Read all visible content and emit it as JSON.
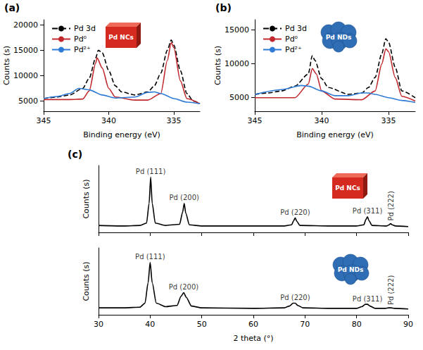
{
  "chart_data": [
    {
      "panel_label": "(a)",
      "type": "line",
      "inset_label": "Pd NCs",
      "xlabel": "Binding energy (eV)",
      "ylabel": "Counts (s)",
      "xlim": [
        345,
        333
      ],
      "xticks": [
        345,
        340,
        335
      ],
      "ylim": [
        3000,
        21000
      ],
      "yticks": [
        5000,
        10000,
        15000,
        20000
      ],
      "grid": false,
      "legend": "upper left",
      "series": [
        {
          "name": "Pd 3d",
          "color": "#000000",
          "line_style": "dashed",
          "x": [
            345,
            344,
            343,
            342,
            341.5,
            341,
            340.8,
            340.5,
            340,
            339.5,
            339,
            338,
            337,
            336.5,
            336,
            335.5,
            335.2,
            335,
            334.5,
            334,
            333.5,
            333
          ],
          "values": [
            5500,
            5800,
            6200,
            7500,
            9500,
            13500,
            15000,
            14500,
            11000,
            8000,
            6800,
            6200,
            6800,
            8000,
            10500,
            15000,
            17000,
            16000,
            11000,
            6500,
            5000,
            4500
          ]
        },
        {
          "name": "Pd⁰",
          "color": "#c0282d",
          "line_style": "solid",
          "x": [
            345,
            343,
            342,
            341.5,
            341,
            340.9,
            340.5,
            340,
            339.5,
            338,
            337,
            336,
            335.5,
            335.2,
            335,
            334.5,
            334,
            333
          ],
          "values": [
            5300,
            5300,
            5400,
            7000,
            12500,
            13500,
            11500,
            7500,
            5800,
            5200,
            5200,
            6500,
            13000,
            16500,
            15500,
            9000,
            5500,
            4500
          ]
        },
        {
          "name": "Pd²⁺",
          "color": "#2e7bd6",
          "line_style": "solid",
          "x": [
            345,
            344,
            343,
            342.3,
            341.5,
            340.5,
            339.5,
            338,
            337,
            336.5,
            336,
            335,
            334,
            333
          ],
          "values": [
            5500,
            5900,
            6500,
            7500,
            7200,
            6200,
            5600,
            5800,
            6700,
            6800,
            6500,
            5500,
            4800,
            4500
          ]
        }
      ]
    },
    {
      "panel_label": "(b)",
      "type": "line",
      "inset_label": "Pd NDs",
      "xlabel": "Binding energy (eV)",
      "ylabel": "Counts (s)",
      "xlim": [
        345,
        333
      ],
      "xticks": [
        345,
        340,
        335
      ],
      "ylim": [
        3000,
        16500
      ],
      "yticks": [
        5000,
        10000,
        15000
      ],
      "grid": false,
      "legend": "upper left",
      "series": [
        {
          "name": "Pd 3d",
          "color": "#000000",
          "line_style": "dashed",
          "x": [
            345,
            344,
            343,
            342,
            341,
            340.7,
            340.5,
            340,
            339.5,
            338,
            337,
            336.5,
            336,
            335.5,
            335.2,
            335,
            334.5,
            334,
            333
          ],
          "values": [
            5500,
            5700,
            6000,
            6700,
            8500,
            11200,
            10500,
            7800,
            6500,
            5500,
            5700,
            6500,
            8000,
            11500,
            13700,
            13200,
            9500,
            6000,
            5000
          ]
        },
        {
          "name": "Pd⁰",
          "color": "#c0282d",
          "line_style": "solid",
          "x": [
            345,
            342,
            341,
            340.7,
            340.4,
            340,
            339,
            337,
            336,
            335.5,
            335.2,
            335,
            334.5,
            334,
            333
          ],
          "values": [
            5000,
            5000,
            7000,
            9300,
            8500,
            6000,
            4800,
            4700,
            6000,
            10000,
            12200,
            11800,
            8000,
            5200,
            4500
          ]
        },
        {
          "name": "Pd²⁺",
          "color": "#2e7bd6",
          "line_style": "solid",
          "x": [
            345,
            343,
            341.5,
            341,
            340,
            339,
            338,
            337,
            336.5,
            336,
            335,
            334,
            333
          ],
          "values": [
            5500,
            6200,
            6800,
            6700,
            6000,
            5300,
            5300,
            5700,
            5700,
            5500,
            5000,
            4600,
            4300
          ]
        }
      ]
    },
    {
      "panel_label": "(c)",
      "type": "line",
      "inset_label": "Pd NCs",
      "ylabel": "Counts (s)",
      "xlim": [
        30,
        90
      ],
      "xticks": [
        30,
        40,
        50,
        60,
        70,
        80,
        90
      ],
      "ylim": [
        0,
        115
      ],
      "grid": false,
      "tick_labels": false,
      "series": [
        {
          "color": "#000000",
          "line_style": "solid",
          "x": [
            30,
            35,
            38,
            39.3,
            39.8,
            40.1,
            40.4,
            41,
            43,
            45.7,
            46.3,
            46.6,
            46.9,
            47.6,
            50,
            60,
            66,
            67.4,
            67.8,
            68.1,
            68.4,
            69,
            75,
            80,
            81.4,
            81.8,
            82.1,
            82.4,
            83,
            85.8,
            86.3,
            86.6,
            86.9,
            87.5,
            90
          ],
          "values": [
            12,
            11,
            12,
            16,
            50,
            95,
            50,
            16,
            12,
            14,
            35,
            50,
            33,
            13,
            11,
            11,
            11,
            13,
            20,
            25,
            19,
            12,
            11,
            11,
            13,
            22,
            27,
            20,
            12,
            11,
            13,
            15,
            13,
            11,
            10
          ]
        }
      ],
      "annotations": [
        {
          "text": "Pd (111)",
          "x": 40.1,
          "y": 95
        },
        {
          "text": "Pd (200)",
          "x": 46.6,
          "y": 50
        },
        {
          "text": "Pd (220)",
          "x": 68.1,
          "y": 25
        },
        {
          "text": "Pd (311)",
          "x": 82.1,
          "y": 27
        },
        {
          "text": "Pd (222)",
          "x": 86.6,
          "y": 15
        }
      ]
    },
    {
      "type": "line",
      "inset_label": "Pd NDs",
      "xlabel": "2 theta (°)",
      "ylabel": "Counts (s)",
      "xlim": [
        30,
        90
      ],
      "xticks": [
        30,
        40,
        50,
        60,
        70,
        80,
        90
      ],
      "ylim": [
        0,
        115
      ],
      "grid": false,
      "tick_labels": "x",
      "series": [
        {
          "color": "#000000",
          "line_style": "solid",
          "x": [
            30,
            35,
            38,
            39,
            39.6,
            40,
            40.4,
            41.2,
            43,
            45.2,
            46,
            46.5,
            47,
            48,
            50,
            60,
            66,
            67,
            67.7,
            68.1,
            68.6,
            69.6,
            75,
            80,
            81,
            81.7,
            82.1,
            82.6,
            83.6,
            85.6,
            86.2,
            86.7,
            87.3,
            90
          ],
          "values": [
            12,
            12,
            13,
            20,
            55,
            90,
            55,
            20,
            14,
            16,
            32,
            38,
            30,
            15,
            12,
            11,
            12,
            15,
            20,
            20,
            16,
            12,
            11,
            11,
            14,
            18,
            18,
            15,
            11,
            11,
            12,
            12,
            11,
            10
          ]
        }
      ],
      "annotations": [
        {
          "text": "Pd (111)",
          "x": 40,
          "y": 90
        },
        {
          "text": "Pd (200)",
          "x": 46.5,
          "y": 38
        },
        {
          "text": "Pd (220)",
          "x": 68.1,
          "y": 20
        },
        {
          "text": "Pd (311)",
          "x": 82.1,
          "y": 18
        },
        {
          "text": "Pd (222)",
          "x": 86.7,
          "y": 12
        }
      ]
    }
  ]
}
